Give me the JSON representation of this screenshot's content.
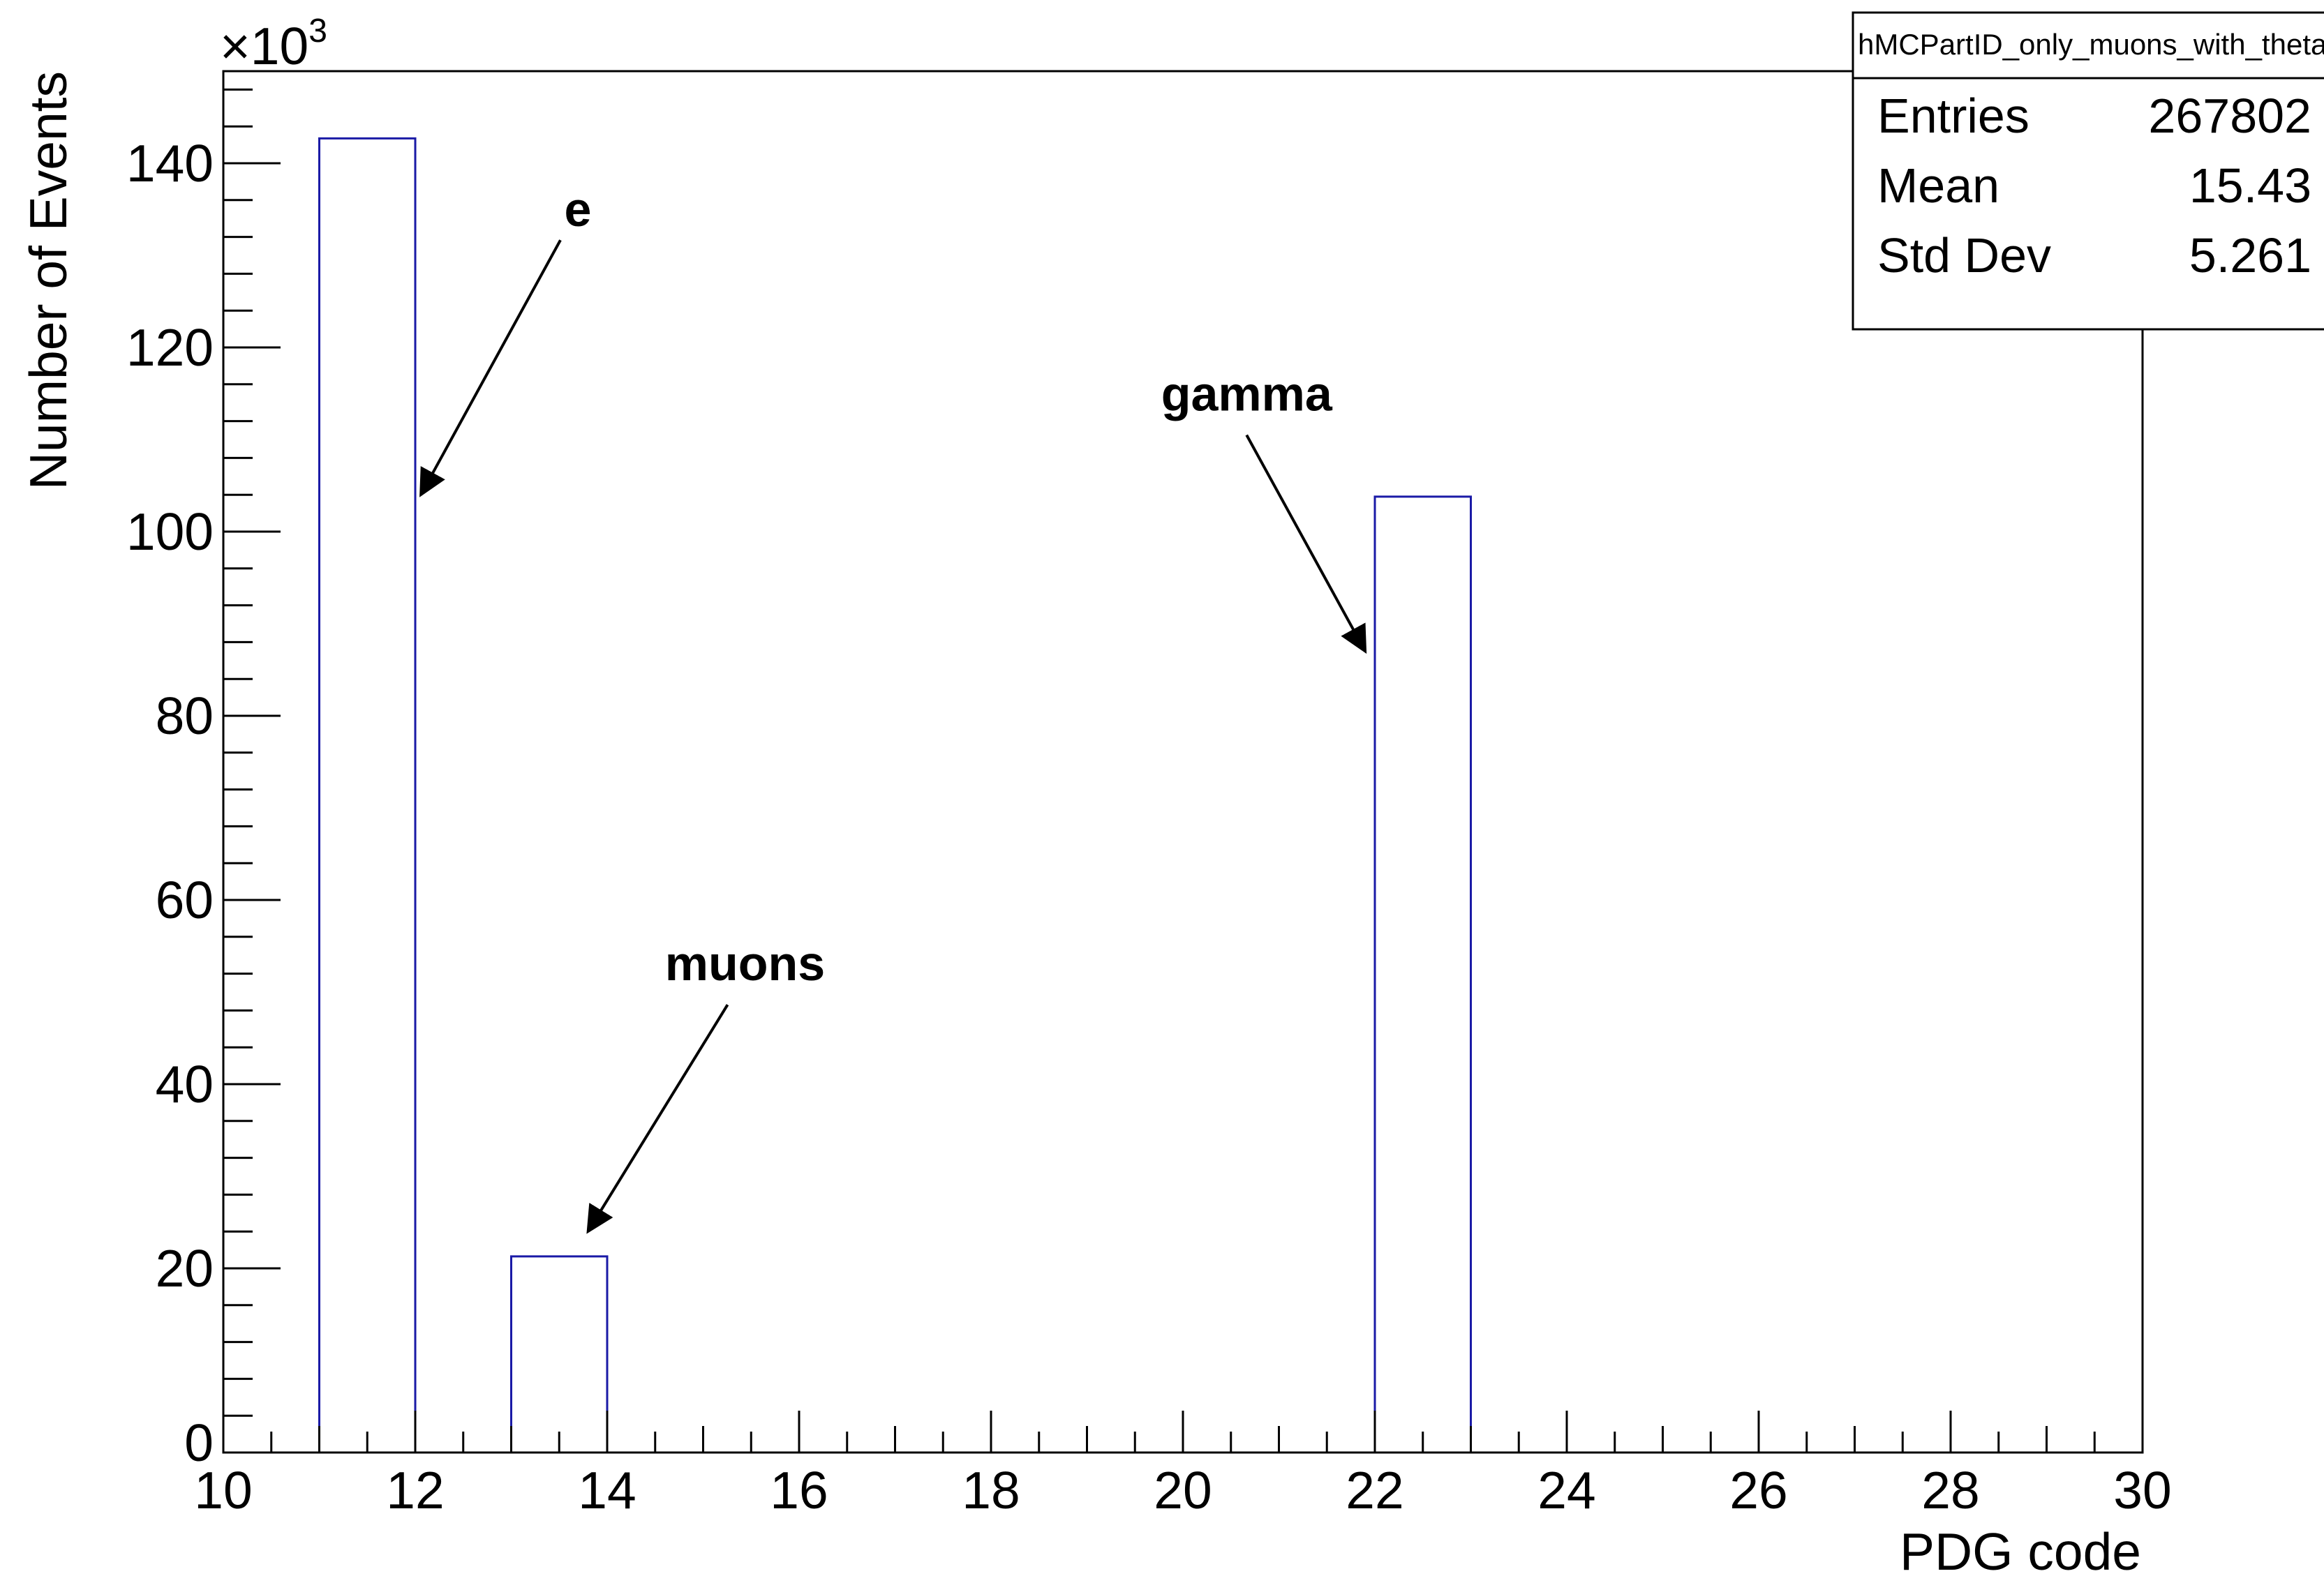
{
  "chart_data": {
    "type": "bar",
    "histogram": true,
    "title": "",
    "xlabel": "PDG code",
    "ylabel": "Number of Events",
    "y_multiplier": "×10",
    "y_multiplier_exp": "3",
    "xlim": [
      10,
      30
    ],
    "ylim": [
      0,
      150
    ],
    "x_ticks": [
      10,
      12,
      14,
      16,
      18,
      20,
      22,
      24,
      26,
      28,
      30
    ],
    "y_ticks": [
      0,
      20,
      40,
      60,
      80,
      100,
      120,
      140
    ],
    "bins": [
      {
        "x_low": 11,
        "x_high": 12,
        "value": 142.7
      },
      {
        "x_low": 13,
        "x_high": 14,
        "value": 21.3
      },
      {
        "x_low": 22,
        "x_high": 23,
        "value": 103.8
      }
    ],
    "bar_color": "#1a1aa6",
    "grid": false,
    "annotations": [
      {
        "text": "e",
        "x": 12.0,
        "y": 104
      },
      {
        "text": "muons",
        "x": 13.8,
        "y": 24
      },
      {
        "text": "gamma",
        "x": 21.9,
        "y": 87
      }
    ],
    "stats_box": {
      "name": "hMCPartID_only_muons_with_theta_cuts",
      "rows": [
        {
          "label": "Entries",
          "value": "267802"
        },
        {
          "label": "Mean",
          "value": "15.43"
        },
        {
          "label": "Std Dev",
          "value": "5.261"
        }
      ]
    }
  }
}
